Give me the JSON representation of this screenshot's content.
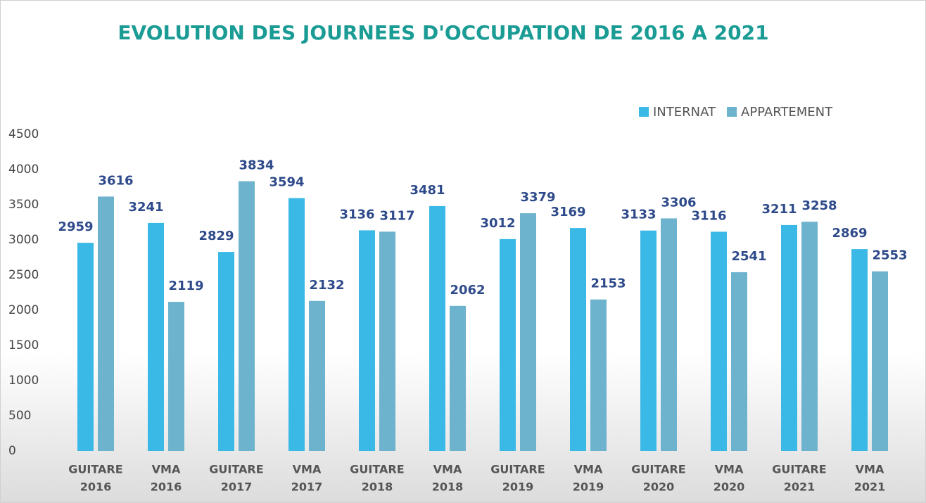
{
  "chart_data": {
    "type": "bar",
    "title": "EVOLUTION DES JOURNEES D'OCCUPATION  DE 2016 A 2021",
    "categories": [
      [
        "GUITARE",
        "2016"
      ],
      [
        "VMA",
        "2016"
      ],
      [
        "GUITARE",
        "2017"
      ],
      [
        "VMA",
        "2017"
      ],
      [
        "GUITARE",
        "2018"
      ],
      [
        "VMA",
        "2018"
      ],
      [
        "GUITARE",
        "2019"
      ],
      [
        "VMA",
        "2019"
      ],
      [
        "GUITARE",
        "2020"
      ],
      [
        "VMA",
        "2020"
      ],
      [
        "GUITARE",
        "2021"
      ],
      [
        "VMA",
        "2021"
      ]
    ],
    "series": [
      {
        "name": "INTERNAT",
        "color": "#3bb9e6",
        "values": [
          2959,
          3241,
          2829,
          3594,
          3136,
          3481,
          3012,
          3169,
          3133,
          3116,
          3211,
          2869
        ]
      },
      {
        "name": "APPARTEMENT",
        "color": "#6db3cd",
        "values": [
          3616,
          2119,
          3834,
          2132,
          3117,
          2062,
          3379,
          2153,
          3306,
          2541,
          3258,
          2553
        ]
      }
    ],
    "ylim": [
      0,
      4500
    ],
    "yticks": [
      0,
      500,
      1000,
      1500,
      2000,
      2500,
      3000,
      3500,
      4000,
      4500
    ],
    "grid": false,
    "legend": "top-right"
  }
}
